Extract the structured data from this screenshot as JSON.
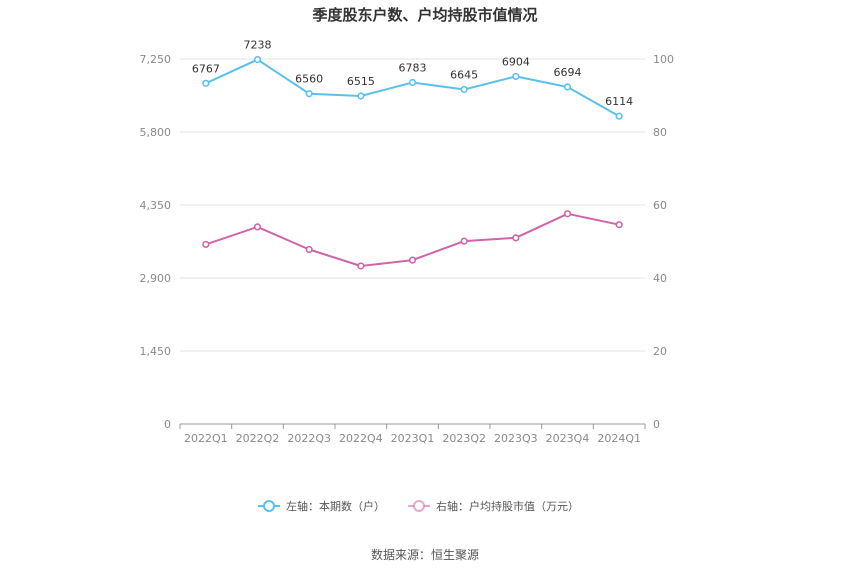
{
  "chart_data": {
    "type": "line",
    "title": "季度股东户数、户均持股市值情况",
    "categories": [
      "2022Q1",
      "2022Q2",
      "2022Q3",
      "2022Q4",
      "2023Q1",
      "2023Q2",
      "2023Q3",
      "2023Q4",
      "2024Q1"
    ],
    "series": [
      {
        "name": "左轴：本期数（户）",
        "axis": "left",
        "color": "#5bc0eb",
        "values": [
          6767,
          7238,
          6560,
          6515,
          6783,
          6645,
          6904,
          6694,
          6114
        ],
        "data_labels": [
          "6767",
          "7238",
          "6560",
          "6515",
          "6783",
          "6645",
          "6904",
          "6694",
          "6114"
        ]
      },
      {
        "name": "右轴：户均持股市值（万元）",
        "axis": "right",
        "color": "#d064a9",
        "values": [
          49.2,
          54.0,
          47.8,
          43.3,
          44.9,
          50.1,
          51.0,
          57.6,
          54.6
        ]
      }
    ],
    "y_left": {
      "ylim": [
        0,
        7250
      ],
      "ticks": [
        "0",
        "1,450",
        "2,900",
        "4,350",
        "5,800",
        "7,250"
      ]
    },
    "y_right": {
      "ylim": [
        0,
        100
      ],
      "ticks": [
        "0",
        "20",
        "40",
        "60",
        "80",
        "100"
      ]
    },
    "grid": true,
    "legend_position": "bottom"
  },
  "source": "数据来源：恒生聚源"
}
